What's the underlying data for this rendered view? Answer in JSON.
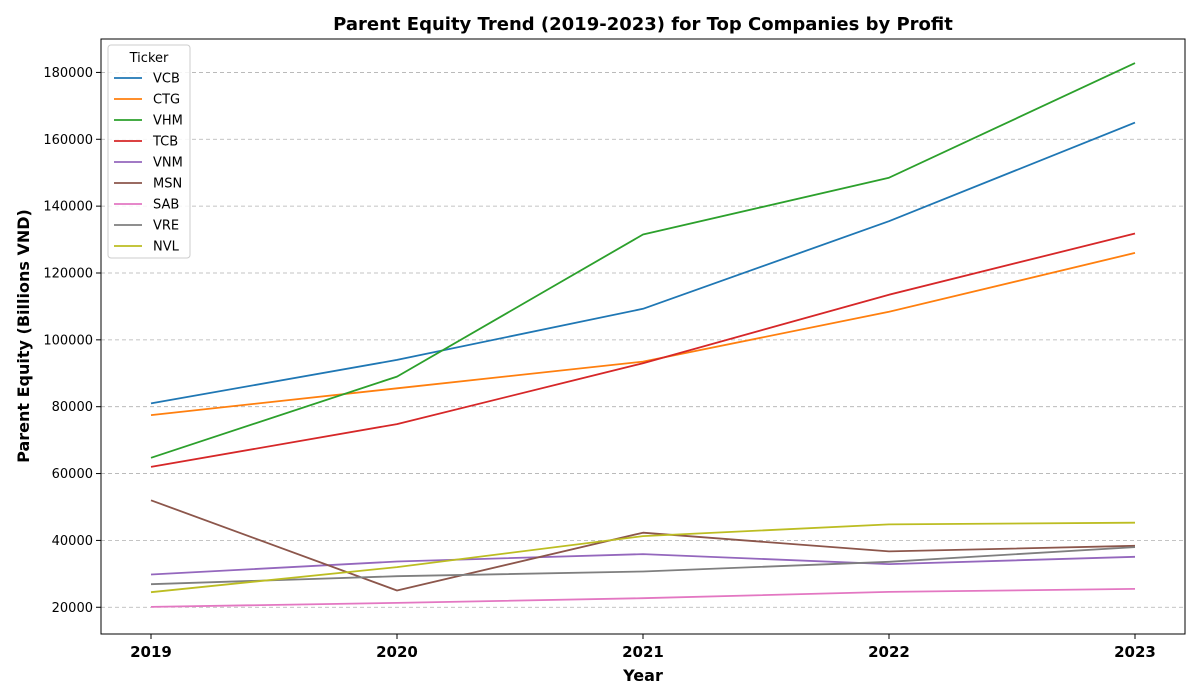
{
  "chart_data": {
    "type": "line",
    "title": "Parent Equity Trend (2019-2023) for Top Companies by Profit",
    "xlabel": "Year",
    "ylabel": "Parent Equity (Billions VND)",
    "x": [
      "2019",
      "2020",
      "2021",
      "2022",
      "2023"
    ],
    "ylim": [
      12000,
      190000
    ],
    "yticks": [
      20000,
      40000,
      60000,
      80000,
      100000,
      120000,
      140000,
      160000,
      180000
    ],
    "ytick_labels": [
      "20000",
      "40000",
      "60000",
      "80000",
      "100000",
      "120000",
      "140000",
      "160000",
      "180000"
    ],
    "grid": "horizontal dashed",
    "legend": {
      "title": "Ticker",
      "placement": "top-left"
    },
    "series": [
      {
        "name": "VCB",
        "color": "#1f77b4",
        "values": [
          81000,
          94000,
          109300,
          135500,
          165000
        ]
      },
      {
        "name": "CTG",
        "color": "#ff7f0e",
        "values": [
          77500,
          85500,
          93500,
          108400,
          126000
        ]
      },
      {
        "name": "VHM",
        "color": "#2ca02c",
        "values": [
          64700,
          89000,
          131500,
          148500,
          182800
        ]
      },
      {
        "name": "TCB",
        "color": "#d62728",
        "values": [
          62000,
          74800,
          93000,
          113500,
          131800
        ]
      },
      {
        "name": "VNM",
        "color": "#9467bd",
        "values": [
          29800,
          33700,
          35900,
          32900,
          35100
        ]
      },
      {
        "name": "MSN",
        "color": "#8c564b",
        "values": [
          52000,
          25000,
          42300,
          36700,
          38400
        ]
      },
      {
        "name": "SAB",
        "color": "#e377c2",
        "values": [
          20100,
          21300,
          22700,
          24600,
          25500
        ]
      },
      {
        "name": "VRE",
        "color": "#7f7f7f",
        "values": [
          26900,
          29300,
          30700,
          33600,
          38000
        ]
      },
      {
        "name": "NVL",
        "color": "#bcbd22",
        "values": [
          24500,
          32000,
          41300,
          44800,
          45300
        ]
      }
    ]
  }
}
